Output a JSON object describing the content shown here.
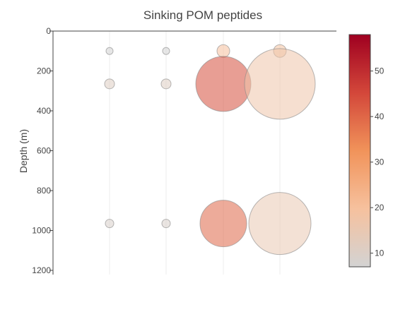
{
  "chart_data": {
    "type": "scatter",
    "subtype": "bubble",
    "title": "Sinking POM peptides",
    "xlabel": "",
    "ylabel": "Depth (m)",
    "y_axis_reversed": true,
    "ylim": [
      0,
      1200
    ],
    "y_ticks": [
      "0",
      "200",
      "400",
      "600",
      "800",
      "1000",
      "1200"
    ],
    "x_grid_lines": 4,
    "series": [
      {
        "points": [
          {
            "col": 1,
            "depth": 100,
            "value": 7
          },
          {
            "col": 1,
            "depth": 265,
            "value": 11
          },
          {
            "col": 1,
            "depth": 965,
            "value": 9
          },
          {
            "col": 2,
            "depth": 100,
            "value": 7
          },
          {
            "col": 2,
            "depth": 265,
            "value": 11
          },
          {
            "col": 2,
            "depth": 965,
            "value": 9
          },
          {
            "col": 3,
            "depth": 100,
            "value": 20
          },
          {
            "col": 3,
            "depth": 265,
            "value": 44
          },
          {
            "col": 3,
            "depth": 965,
            "value": 40
          },
          {
            "col": 4,
            "depth": 100,
            "value": 19
          },
          {
            "col": 4,
            "depth": 265,
            "value": 17
          },
          {
            "col": 4,
            "depth": 965,
            "value": 15
          }
        ]
      }
    ],
    "colorbar": {
      "min": 7,
      "max": 58,
      "ticks": [
        "10",
        "20",
        "30",
        "40",
        "50"
      ],
      "colorscale": [
        "#d3d3d3",
        "#f6c19e",
        "#f1935a",
        "#d3473a",
        "#9f0020"
      ]
    },
    "marker_opacity": 0.55
  }
}
